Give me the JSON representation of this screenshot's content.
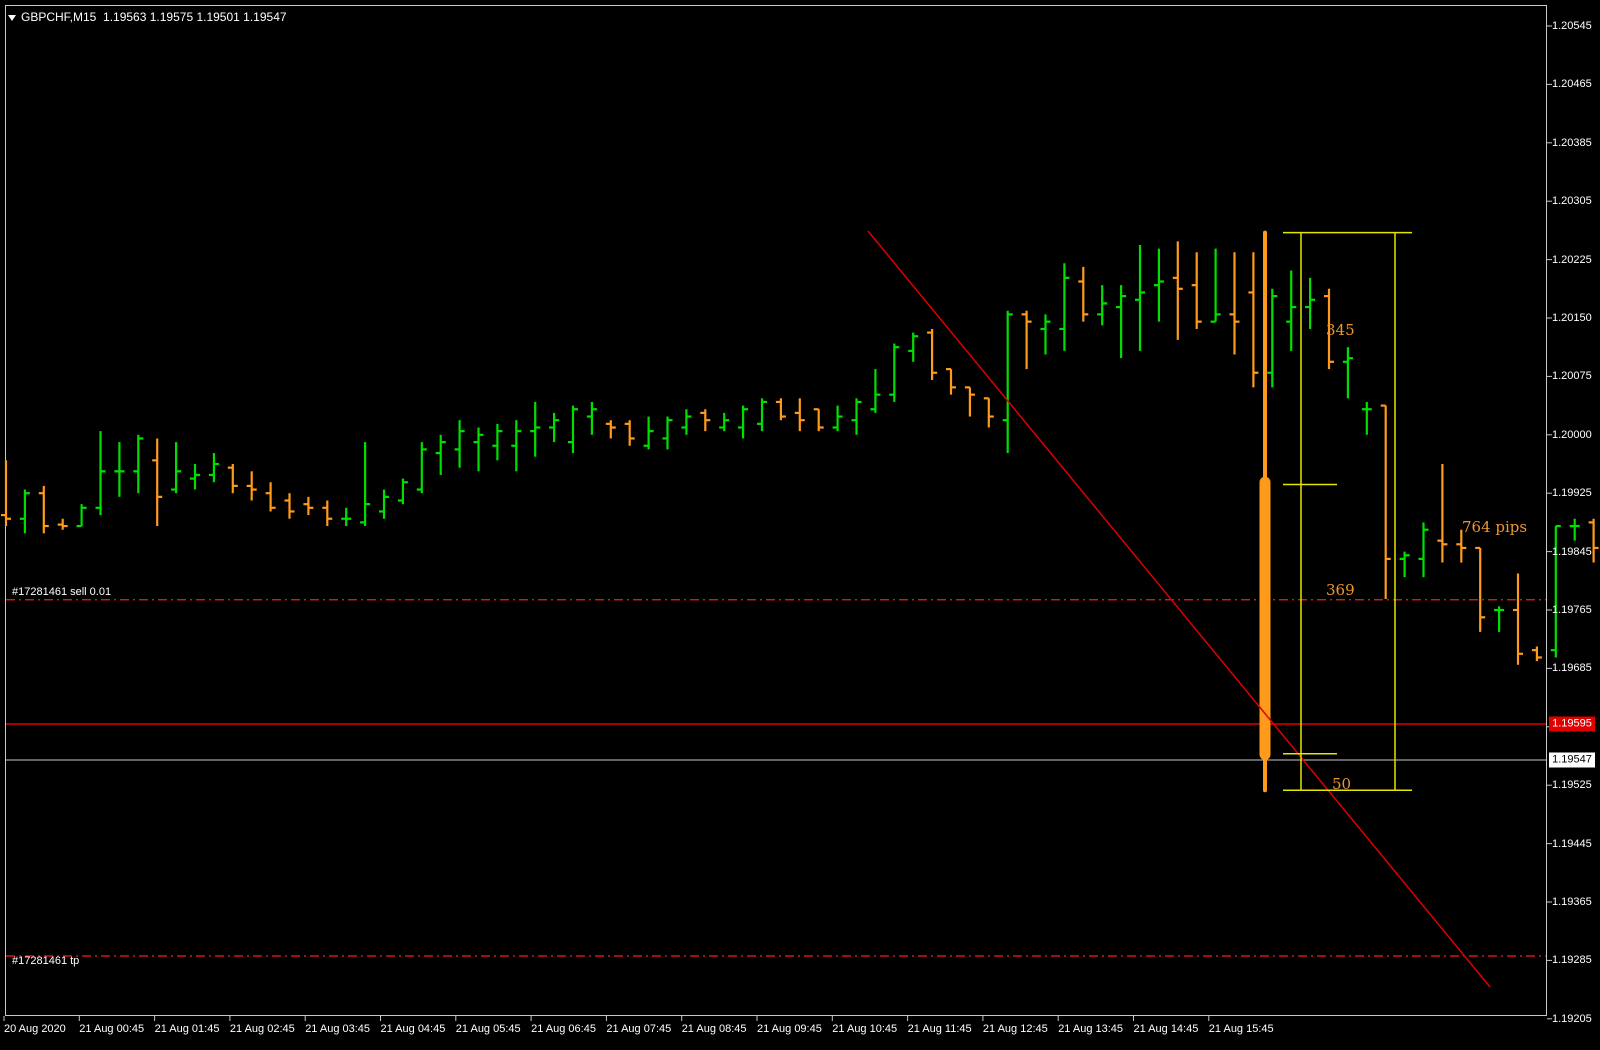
{
  "header": {
    "symbol": "GBPCHF,M15",
    "ohlc": "1.19563 1.19575 1.19501 1.19547"
  },
  "colors": {
    "background": "#000000",
    "bull": "#00e000",
    "bear": "#ff9a1a",
    "order_line": "#ff1a1a",
    "trendline": "#dd0000",
    "bid_line": "#e00000",
    "ask_line": "#c8c8c8",
    "measure": "#e6e600",
    "measure_text": "#f0962a"
  },
  "price_axis": {
    "labels": [
      "1.20545",
      "1.20465",
      "1.20385",
      "1.20305",
      "1.20225",
      "1.20150",
      "1.20075",
      "1.20000",
      "1.19925",
      "1.19845",
      "1.19765",
      "1.19685",
      "1.19605",
      "1.19525",
      "1.19445",
      "1.19365",
      "1.19285",
      "1.19205"
    ]
  },
  "time_axis": {
    "labels": [
      "20 Aug 2020",
      "21 Aug 00:45",
      "21 Aug 01:45",
      "21 Aug 02:45",
      "21 Aug 03:45",
      "21 Aug 04:45",
      "21 Aug 05:45",
      "21 Aug 06:45",
      "21 Aug 07:45",
      "21 Aug 08:45",
      "21 Aug 09:45",
      "21 Aug 10:45",
      "21 Aug 11:45",
      "21 Aug 12:45",
      "21 Aug 13:45",
      "21 Aug 14:45",
      "21 Aug 15:45"
    ]
  },
  "price_tags": {
    "bid": "1.19595",
    "ask": "1.19547"
  },
  "orders": {
    "sell_label": "#17281461 sell 0.01",
    "sell_price": 1.19759,
    "tp_label": "#17281461 tp",
    "tp_price": 1.19271
  },
  "trendline": {
    "start_bar": 0,
    "start_price": 1.2027,
    "end_bar": 0,
    "end_price": 1.1927
  },
  "measure": {
    "total": "764 pips",
    "upper": "345",
    "middle": "369",
    "lower": "50",
    "high": 1.20262,
    "mid": 1.19917,
    "open_ref": 1.19548,
    "low": 1.19498
  },
  "chart_data": {
    "type": "ohlc",
    "symbol": "GBPCHF",
    "timeframe": "M15",
    "bars": [
      {
        "o": 1.19875,
        "h": 1.1995,
        "l": 1.1986,
        "c": 1.1987
      },
      {
        "o": 1.1987,
        "h": 1.1991,
        "l": 1.1985,
        "c": 1.19905
      },
      {
        "o": 1.19905,
        "h": 1.19915,
        "l": 1.1985,
        "c": 1.1986
      },
      {
        "o": 1.19862,
        "h": 1.1987,
        "l": 1.19855,
        "c": 1.1986
      },
      {
        "o": 1.1986,
        "h": 1.1989,
        "l": 1.1986,
        "c": 1.19885
      },
      {
        "o": 1.19885,
        "h": 1.1999,
        "l": 1.19875,
        "c": 1.19935
      },
      {
        "o": 1.19935,
        "h": 1.19975,
        "l": 1.199,
        "c": 1.19935
      },
      {
        "o": 1.19935,
        "h": 1.19985,
        "l": 1.19905,
        "c": 1.1998
      },
      {
        "o": 1.1995,
        "h": 1.1998,
        "l": 1.1986,
        "c": 1.199
      },
      {
        "o": 1.1991,
        "h": 1.19975,
        "l": 1.19905,
        "c": 1.19935
      },
      {
        "o": 1.19925,
        "h": 1.19945,
        "l": 1.1991,
        "c": 1.1993
      },
      {
        "o": 1.1993,
        "h": 1.1996,
        "l": 1.1992,
        "c": 1.19945
      },
      {
        "o": 1.1994,
        "h": 1.19945,
        "l": 1.19905,
        "c": 1.19915
      },
      {
        "o": 1.19915,
        "h": 1.19935,
        "l": 1.19895,
        "c": 1.1991
      },
      {
        "o": 1.19905,
        "h": 1.1992,
        "l": 1.1988,
        "c": 1.19885
      },
      {
        "o": 1.19895,
        "h": 1.19905,
        "l": 1.1987,
        "c": 1.1988
      },
      {
        "o": 1.1989,
        "h": 1.199,
        "l": 1.19875,
        "c": 1.19885
      },
      {
        "o": 1.19885,
        "h": 1.19895,
        "l": 1.1986,
        "c": 1.1987
      },
      {
        "o": 1.1987,
        "h": 1.19885,
        "l": 1.1986,
        "c": 1.1987
      },
      {
        "o": 1.19865,
        "h": 1.19975,
        "l": 1.1986,
        "c": 1.1989
      },
      {
        "o": 1.1988,
        "h": 1.1991,
        "l": 1.1987,
        "c": 1.199
      },
      {
        "o": 1.19895,
        "h": 1.19925,
        "l": 1.1989,
        "c": 1.1992
      },
      {
        "o": 1.1991,
        "h": 1.19975,
        "l": 1.19905,
        "c": 1.19965
      },
      {
        "o": 1.1996,
        "h": 1.19985,
        "l": 1.1993,
        "c": 1.19975
      },
      {
        "o": 1.19965,
        "h": 1.20005,
        "l": 1.1994,
        "c": 1.1999
      },
      {
        "o": 1.19975,
        "h": 1.19995,
        "l": 1.19935,
        "c": 1.19985
      },
      {
        "o": 1.1997,
        "h": 1.2,
        "l": 1.1995,
        "c": 1.1999
      },
      {
        "o": 1.1997,
        "h": 1.20005,
        "l": 1.19935,
        "c": 1.1999
      },
      {
        "o": 1.1999,
        "h": 1.2003,
        "l": 1.19955,
        "c": 1.19995
      },
      {
        "o": 1.19995,
        "h": 1.20015,
        "l": 1.19975,
        "c": 1.20005
      },
      {
        "o": 1.19975,
        "h": 1.20025,
        "l": 1.1996,
        "c": 1.2002
      },
      {
        "o": 1.2001,
        "h": 1.2003,
        "l": 1.19985,
        "c": 1.2002
      },
      {
        "o": 1.2,
        "h": 1.20005,
        "l": 1.1998,
        "c": 1.19995
      },
      {
        "o": 1.2,
        "h": 1.20005,
        "l": 1.1997,
        "c": 1.1998
      },
      {
        "o": 1.1997,
        "h": 1.2001,
        "l": 1.19965,
        "c": 1.1999
      },
      {
        "o": 1.1998,
        "h": 1.2001,
        "l": 1.19965,
        "c": 1.20005
      },
      {
        "o": 1.19995,
        "h": 1.2002,
        "l": 1.19985,
        "c": 1.2001
      },
      {
        "o": 1.20015,
        "h": 1.2002,
        "l": 1.1999,
        "c": 1.20005
      },
      {
        "o": 1.19995,
        "h": 1.20015,
        "l": 1.1999,
        "c": 1.20005
      },
      {
        "o": 1.19995,
        "h": 1.20025,
        "l": 1.1998,
        "c": 1.2002
      },
      {
        "o": 1.2,
        "h": 1.20035,
        "l": 1.1999,
        "c": 1.2003
      },
      {
        "o": 1.2003,
        "h": 1.20035,
        "l": 1.20005,
        "c": 1.2001
      },
      {
        "o": 1.20015,
        "h": 1.20035,
        "l": 1.1999,
        "c": 1.20005
      },
      {
        "o": 1.2002,
        "h": 1.2002,
        "l": 1.1999,
        "c": 1.19995
      },
      {
        "o": 1.19995,
        "h": 1.20025,
        "l": 1.1999,
        "c": 1.2001
      },
      {
        "o": 1.20005,
        "h": 1.20035,
        "l": 1.19985,
        "c": 1.2003
      },
      {
        "o": 1.2002,
        "h": 1.20075,
        "l": 1.20015,
        "c": 1.2004
      },
      {
        "o": 1.2004,
        "h": 1.2011,
        "l": 1.2003,
        "c": 1.20105
      },
      {
        "o": 1.201,
        "h": 1.20125,
        "l": 1.20085,
        "c": 1.2012
      },
      {
        "o": 1.20125,
        "h": 1.2013,
        "l": 1.2006,
        "c": 1.2007
      },
      {
        "o": 1.20075,
        "h": 1.20075,
        "l": 1.2004,
        "c": 1.2005
      },
      {
        "o": 1.2005,
        "h": 1.2005,
        "l": 1.2001,
        "c": 1.2004
      },
      {
        "o": 1.20035,
        "h": 1.20035,
        "l": 1.19995,
        "c": 1.2001
      },
      {
        "o": 1.20005,
        "h": 1.20155,
        "l": 1.1996,
        "c": 1.2015
      },
      {
        "o": 1.2015,
        "h": 1.20155,
        "l": 1.20075,
        "c": 1.2014
      },
      {
        "o": 1.2013,
        "h": 1.2015,
        "l": 1.20095,
        "c": 1.2014
      },
      {
        "o": 1.2013,
        "h": 1.2022,
        "l": 1.201,
        "c": 1.202
      },
      {
        "o": 1.20195,
        "h": 1.20215,
        "l": 1.2014,
        "c": 1.2015
      },
      {
        "o": 1.2015,
        "h": 1.2019,
        "l": 1.20135,
        "c": 1.20165
      },
      {
        "o": 1.2016,
        "h": 1.2019,
        "l": 1.2009,
        "c": 1.20175
      },
      {
        "o": 1.2017,
        "h": 1.20245,
        "l": 1.201,
        "c": 1.2018
      },
      {
        "o": 1.2019,
        "h": 1.2024,
        "l": 1.2014,
        "c": 1.20195
      },
      {
        "o": 1.202,
        "h": 1.2025,
        "l": 1.20115,
        "c": 1.20185
      },
      {
        "o": 1.2019,
        "h": 1.20235,
        "l": 1.2013,
        "c": 1.2014
      },
      {
        "o": 1.2014,
        "h": 1.2024,
        "l": 1.2014,
        "c": 1.2015
      },
      {
        "o": 1.2015,
        "h": 1.20235,
        "l": 1.20095,
        "c": 1.2014
      },
      {
        "o": 1.2018,
        "h": 1.20235,
        "l": 1.2005,
        "c": 1.2007
      },
      {
        "o": 1.2007,
        "h": 1.20185,
        "l": 1.2005,
        "c": 1.20175
      },
      {
        "o": 1.2014,
        "h": 1.2021,
        "l": 1.201,
        "c": 1.2016
      },
      {
        "o": 1.2016,
        "h": 1.202,
        "l": 1.2013,
        "c": 1.2017
      },
      {
        "o": 1.20175,
        "h": 1.20185,
        "l": 1.20075,
        "c": 1.20085
      },
      {
        "o": 1.20085,
        "h": 1.20105,
        "l": 1.20035,
        "c": 1.2009
      },
      {
        "o": 1.2002,
        "h": 1.2003,
        "l": 1.19985,
        "c": 1.2002
      },
      {
        "o": 1.20025,
        "h": 1.20025,
        "l": 1.1976,
        "c": 1.19815
      },
      {
        "o": 1.19815,
        "h": 1.19825,
        "l": 1.1979,
        "c": 1.1982
      },
      {
        "o": 1.19815,
        "h": 1.19865,
        "l": 1.1979,
        "c": 1.19855
      },
      {
        "o": 1.1984,
        "h": 1.19945,
        "l": 1.1981,
        "c": 1.19835
      },
      {
        "o": 1.19835,
        "h": 1.19855,
        "l": 1.1981,
        "c": 1.1983
      },
      {
        "o": 1.1983,
        "h": 1.1983,
        "l": 1.19715,
        "c": 1.19735
      },
      {
        "o": 1.19745,
        "h": 1.1975,
        "l": 1.19715,
        "c": 1.19745
      },
      {
        "o": 1.19745,
        "h": 1.19795,
        "l": 1.1967,
        "c": 1.19685
      },
      {
        "o": 1.1969,
        "h": 1.19695,
        "l": 1.19675,
        "c": 1.1968
      },
      {
        "o": 1.1969,
        "h": 1.1986,
        "l": 1.1968,
        "c": 1.1986
      },
      {
        "o": 1.1986,
        "h": 1.1987,
        "l": 1.1984,
        "c": 1.1986
      },
      {
        "o": 1.19865,
        "h": 1.1987,
        "l": 1.1981,
        "c": 1.1983
      },
      {
        "o": 1.1986,
        "h": 1.19865,
        "l": 1.1978,
        "c": 1.1983
      },
      {
        "o": 1.19835,
        "h": 1.1985,
        "l": 1.1979,
        "c": 1.1982
      },
      {
        "o": 1.1982,
        "h": 1.1984,
        "l": 1.1972,
        "c": 1.19765
      },
      {
        "o": 1.1977,
        "h": 1.1977,
        "l": 1.1962,
        "c": 1.19625
      },
      {
        "o": 1.1962,
        "h": 1.1965,
        "l": 1.196,
        "c": 1.1964
      },
      {
        "o": 1.196,
        "h": 1.19715,
        "l": 1.196,
        "c": 1.1969
      },
      {
        "o": 1.1969,
        "h": 1.197,
        "l": 1.1966,
        "c": 1.1968
      },
      {
        "o": 1.1969,
        "h": 1.19705,
        "l": 1.196,
        "c": 1.19605
      },
      {
        "o": 1.19605,
        "h": 1.1961,
        "l": 1.19595,
        "c": 1.196
      },
      {
        "o": 1.196,
        "h": 1.1962,
        "l": 1.1949,
        "c": 1.1957
      },
      {
        "o": 1.19565,
        "h": 1.19575,
        "l": 1.19505,
        "c": 1.1955
      }
    ],
    "bars_skip_after": 95,
    "big_bar": {
      "o": 1.1992,
      "h": 1.20262,
      "l": 1.19498,
      "c": 1.19547
    }
  }
}
